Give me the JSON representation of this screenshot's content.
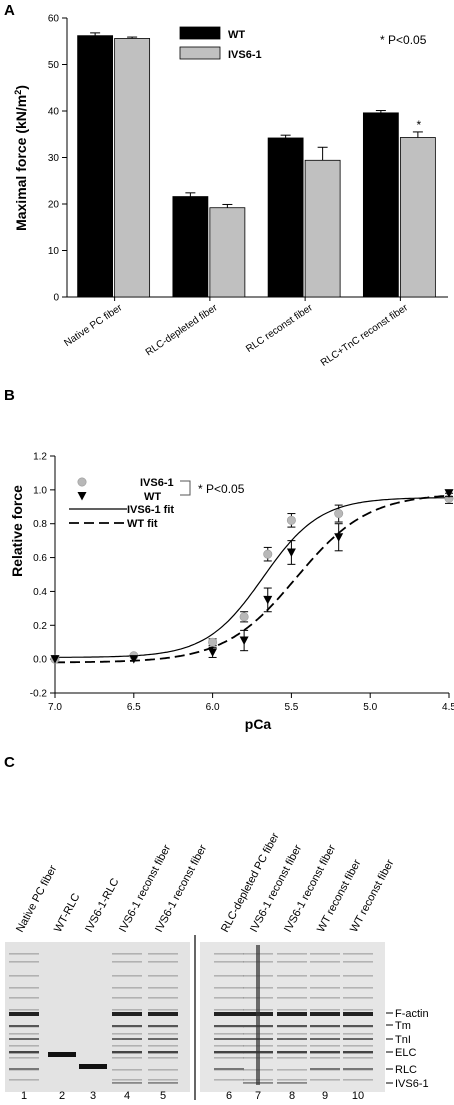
{
  "panels": {
    "a": "A",
    "b": "B",
    "c": "C"
  },
  "chart_data": [
    {
      "type": "bar",
      "categories": [
        "Native PC fiber",
        "RLC-depleted fiber",
        "RLC reconst fiber",
        "RLC+TnC reconst fiber"
      ],
      "series": [
        {
          "name": "WT",
          "color": "#000000",
          "values": [
            56.2,
            21.6,
            34.2,
            39.6
          ],
          "errors": [
            0.6,
            0.8,
            0.6,
            0.5
          ]
        },
        {
          "name": "IVS6-1",
          "color": "#c0c0c0",
          "values": [
            55.6,
            19.2,
            29.4,
            34.3
          ],
          "errors": [
            0.3,
            0.7,
            2.8,
            1.2
          ]
        }
      ],
      "ylabel": "Maximal force (kN/m²)",
      "ylabel_main": "Maximal force (kN/m",
      "ylabel_sup": "2",
      "ylabel_end": ")",
      "ylim": [
        0,
        60
      ],
      "yticks": [
        0,
        10,
        20,
        30,
        40,
        50,
        60
      ],
      "annotation": "* P<0.05",
      "star_label": "*",
      "legend_position": "top-center"
    },
    {
      "type": "scatter",
      "xlabel": "pCa",
      "ylabel": "Relative force",
      "xlim": [
        7.0,
        4.5
      ],
      "ylim": [
        -0.2,
        1.2
      ],
      "xticks": [
        "7.0",
        "6.5",
        "6.0",
        "5.5",
        "5.0",
        "4.5"
      ],
      "yticks": [
        "-0.2",
        "0.0",
        "0.2",
        "0.4",
        "0.6",
        "0.8",
        "1.0",
        "1.2"
      ],
      "series": [
        {
          "name": "IVS6-1",
          "marker": "circle",
          "color": "#b8b8b8",
          "x": [
            7.0,
            6.5,
            6.0,
            5.8,
            5.65,
            5.5,
            5.2,
            4.5
          ],
          "y": [
            0.0,
            0.02,
            0.1,
            0.25,
            0.62,
            0.82,
            0.86,
            0.95
          ],
          "err": [
            0.0,
            0.0,
            0.02,
            0.03,
            0.04,
            0.04,
            0.05,
            0.03
          ]
        },
        {
          "name": "WT",
          "marker": "triangle-down",
          "color": "#000000",
          "x": [
            7.0,
            6.5,
            6.0,
            5.8,
            5.65,
            5.5,
            5.2,
            4.5
          ],
          "y": [
            0.0,
            0.0,
            0.04,
            0.11,
            0.35,
            0.63,
            0.72,
            0.98
          ],
          "err": [
            0.0,
            0.0,
            0.03,
            0.06,
            0.07,
            0.07,
            0.08,
            0.02
          ]
        }
      ],
      "fits": [
        {
          "name": "IVS6-1 fit",
          "style": "solid",
          "min": 0.01,
          "max": 0.955,
          "pca50": 5.68,
          "hill": 2.4
        },
        {
          "name": "WT fit",
          "style": "dashed",
          "min": -0.02,
          "max": 0.98,
          "pca50": 5.47,
          "hill": 1.9
        }
      ],
      "annotation": "* P<0.05",
      "legend_position": "top-left"
    }
  ],
  "gel": {
    "lanes": [
      {
        "number": "1",
        "label": "Native PC fiber",
        "underline": false
      },
      {
        "number": "2",
        "label": "WT-RLC",
        "underline": false
      },
      {
        "number": "3",
        "label": "IVS6-1-RLC",
        "underline": false
      },
      {
        "number": "4",
        "label": "IVS6-1 reconst fiber",
        "underline": true
      },
      {
        "number": "5",
        "label": "IVS6-1 reconst fiber",
        "underline": true
      },
      {
        "number": "6",
        "label": "RLC-depleted PC fiber",
        "underline": false
      },
      {
        "number": "7",
        "label": "IVS6-1 reconst fiber",
        "underline": true
      },
      {
        "number": "8",
        "label": "IVS6-1 reconst fiber",
        "underline": true
      },
      {
        "number": "9",
        "label": "WT reconst fiber",
        "underline": true
      },
      {
        "number": "10",
        "label": "WT reconst fiber",
        "underline": true
      }
    ],
    "bands": [
      "F-actin",
      "Tm",
      "TnI",
      "ELC",
      "RLC",
      "IVS6-1"
    ]
  }
}
